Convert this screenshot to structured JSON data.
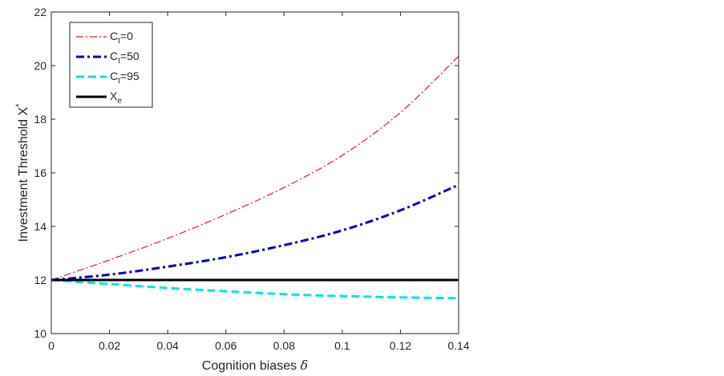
{
  "chart_data": {
    "type": "line",
    "xlabel": "Cognition biases",
    "xlabel_symbol": "δ",
    "ylabel": "Investment Threshold X",
    "ylabel_sup": "*",
    "xlim": [
      0,
      0.14
    ],
    "ylim": [
      10,
      22
    ],
    "xticks": [
      "0",
      "0.02",
      "0.04",
      "0.06",
      "0.08",
      "0.1",
      "0.12",
      "0.14"
    ],
    "yticks": [
      "10",
      "12",
      "14",
      "16",
      "18",
      "20",
      "22"
    ],
    "grid": false,
    "legend_position": "top-left",
    "x": [
      0,
      0.02,
      0.04,
      0.06,
      0.08,
      0.1,
      0.12,
      0.14
    ],
    "series": [
      {
        "legend_main": "C",
        "legend_sub": "t",
        "legend_tail": "=0",
        "color": "#e41a1c",
        "style": "dashdot-thin",
        "values": [
          12.0,
          12.75,
          13.55,
          14.45,
          15.45,
          16.65,
          18.25,
          20.35
        ]
      },
      {
        "legend_main": "C",
        "legend_sub": "t",
        "legend_tail": "=50",
        "color": "#0000cc",
        "style": "dashdot-thick",
        "values": [
          12.0,
          12.2,
          12.5,
          12.85,
          13.3,
          13.85,
          14.6,
          15.55
        ]
      },
      {
        "legend_main": "C",
        "legend_sub": "t",
        "legend_tail": "=95",
        "color": "#00e5e5",
        "style": "dashed-thick",
        "values": [
          12.0,
          11.85,
          11.7,
          11.58,
          11.47,
          11.4,
          11.35,
          11.32
        ]
      },
      {
        "legend_main": "X",
        "legend_sub": "e",
        "legend_tail": "",
        "color": "#000000",
        "style": "solid-thick",
        "values": [
          12.0,
          12.0,
          12.0,
          12.0,
          12.0,
          12.0,
          12.0,
          12.0
        ]
      }
    ]
  }
}
